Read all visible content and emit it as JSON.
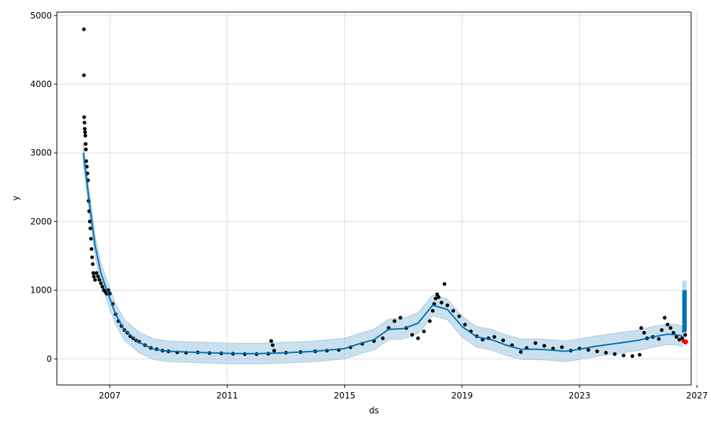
{
  "chart_data": {
    "type": "scatter",
    "title": "",
    "xlabel": "ds",
    "ylabel": "y",
    "xlim": [
      2005.2,
      2026.8
    ],
    "ylim": [
      -380,
      5050
    ],
    "x_ticks": [
      2007,
      2011,
      2015,
      2019,
      2023,
      2027
    ],
    "x_tick_labels": [
      "2007",
      "2011",
      "2015",
      "2019",
      "2023",
      "2027"
    ],
    "y_ticks": [
      0,
      1000,
      2000,
      3000,
      4000,
      5000
    ],
    "y_tick_labels": [
      "0",
      "1000",
      "2000",
      "3000",
      "4000",
      "5000"
    ],
    "grid": true,
    "colors": {
      "observed": "#000000",
      "forecast_line": "#0072B2",
      "uncertainty": "#a8cbe3",
      "highlight": "#ff0000"
    },
    "observed": [
      [
        2006.12,
        4800
      ],
      [
        2006.12,
        4130
      ],
      [
        2006.13,
        3520
      ],
      [
        2006.14,
        3440
      ],
      [
        2006.15,
        3350
      ],
      [
        2006.16,
        3300
      ],
      [
        2006.17,
        3250
      ],
      [
        2006.18,
        3130
      ],
      [
        2006.19,
        3050
      ],
      [
        2006.2,
        2880
      ],
      [
        2006.22,
        2800
      ],
      [
        2006.24,
        2700
      ],
      [
        2006.26,
        2600
      ],
      [
        2006.28,
        2300
      ],
      [
        2006.3,
        2150
      ],
      [
        2006.32,
        2000
      ],
      [
        2006.34,
        1900
      ],
      [
        2006.36,
        1750
      ],
      [
        2006.38,
        1600
      ],
      [
        2006.4,
        1480
      ],
      [
        2006.42,
        1380
      ],
      [
        2006.44,
        1250
      ],
      [
        2006.46,
        1200
      ],
      [
        2006.5,
        1150
      ],
      [
        2006.55,
        1250
      ],
      [
        2006.6,
        1200
      ],
      [
        2006.65,
        1150
      ],
      [
        2006.7,
        1100
      ],
      [
        2006.75,
        1050
      ],
      [
        2006.8,
        1000
      ],
      [
        2006.85,
        980
      ],
      [
        2006.9,
        950
      ],
      [
        2006.95,
        1000
      ],
      [
        2007.0,
        950
      ],
      [
        2007.1,
        800
      ],
      [
        2007.2,
        650
      ],
      [
        2007.3,
        550
      ],
      [
        2007.4,
        480
      ],
      [
        2007.5,
        420
      ],
      [
        2007.6,
        380
      ],
      [
        2007.7,
        330
      ],
      [
        2007.8,
        300
      ],
      [
        2007.9,
        270
      ],
      [
        2008.0,
        250
      ],
      [
        2008.2,
        200
      ],
      [
        2008.4,
        160
      ],
      [
        2008.6,
        140
      ],
      [
        2008.8,
        120
      ],
      [
        2009.0,
        110
      ],
      [
        2009.3,
        95
      ],
      [
        2009.6,
        90
      ],
      [
        2010.0,
        95
      ],
      [
        2010.4,
        85
      ],
      [
        2010.8,
        80
      ],
      [
        2011.2,
        75
      ],
      [
        2011.6,
        70
      ],
      [
        2012.0,
        70
      ],
      [
        2012.4,
        75
      ],
      [
        2012.5,
        260
      ],
      [
        2012.55,
        200
      ],
      [
        2012.6,
        120
      ],
      [
        2013.0,
        90
      ],
      [
        2013.5,
        100
      ],
      [
        2014.0,
        110
      ],
      [
        2014.4,
        120
      ],
      [
        2014.8,
        130
      ],
      [
        2015.2,
        170
      ],
      [
        2015.6,
        220
      ],
      [
        2016.0,
        260
      ],
      [
        2016.3,
        300
      ],
      [
        2016.5,
        450
      ],
      [
        2016.7,
        550
      ],
      [
        2016.9,
        600
      ],
      [
        2017.1,
        450
      ],
      [
        2017.3,
        350
      ],
      [
        2017.5,
        300
      ],
      [
        2017.7,
        400
      ],
      [
        2017.9,
        550
      ],
      [
        2018.0,
        700
      ],
      [
        2018.05,
        800
      ],
      [
        2018.1,
        880
      ],
      [
        2018.15,
        940
      ],
      [
        2018.2,
        900
      ],
      [
        2018.3,
        820
      ],
      [
        2018.4,
        1090
      ],
      [
        2018.5,
        780
      ],
      [
        2018.7,
        700
      ],
      [
        2018.9,
        620
      ],
      [
        2019.1,
        500
      ],
      [
        2019.3,
        400
      ],
      [
        2019.5,
        330
      ],
      [
        2019.7,
        280
      ],
      [
        2019.9,
        300
      ],
      [
        2020.1,
        320
      ],
      [
        2020.4,
        270
      ],
      [
        2020.7,
        200
      ],
      [
        2021.0,
        100
      ],
      [
        2021.2,
        160
      ],
      [
        2021.5,
        230
      ],
      [
        2021.8,
        190
      ],
      [
        2022.1,
        150
      ],
      [
        2022.4,
        170
      ],
      [
        2022.7,
        120
      ],
      [
        2023.0,
        150
      ],
      [
        2023.3,
        130
      ],
      [
        2023.6,
        110
      ],
      [
        2023.9,
        90
      ],
      [
        2024.2,
        70
      ],
      [
        2024.5,
        50
      ],
      [
        2024.8,
        40
      ],
      [
        2025.05,
        60
      ],
      [
        2025.1,
        450
      ],
      [
        2025.2,
        380
      ],
      [
        2025.3,
        300
      ],
      [
        2025.5,
        320
      ],
      [
        2025.7,
        290
      ],
      [
        2025.8,
        420
      ],
      [
        2025.9,
        600
      ],
      [
        2026.0,
        500
      ],
      [
        2026.1,
        450
      ],
      [
        2026.2,
        380
      ],
      [
        2026.3,
        320
      ],
      [
        2026.4,
        280
      ],
      [
        2026.5,
        300
      ],
      [
        2026.6,
        350
      ]
    ],
    "trend": [
      [
        2006.1,
        3000
      ],
      [
        2006.3,
        2300
      ],
      [
        2006.5,
        1650
      ],
      [
        2006.7,
        1250
      ],
      [
        2006.9,
        1000
      ],
      [
        2007.2,
        650
      ],
      [
        2007.5,
        420
      ],
      [
        2008.0,
        240
      ],
      [
        2008.5,
        140
      ],
      [
        2009.0,
        110
      ],
      [
        2010.0,
        95
      ],
      [
        2011.0,
        80
      ],
      [
        2012.0,
        75
      ],
      [
        2013.0,
        90
      ],
      [
        2014.0,
        110
      ],
      [
        2015.0,
        150
      ],
      [
        2015.5,
        220
      ],
      [
        2016.0,
        280
      ],
      [
        2016.5,
        430
      ],
      [
        2017.0,
        440
      ],
      [
        2017.5,
        520
      ],
      [
        2018.0,
        780
      ],
      [
        2018.5,
        720
      ],
      [
        2019.0,
        470
      ],
      [
        2019.5,
        320
      ],
      [
        2020.0,
        280
      ],
      [
        2020.5,
        200
      ],
      [
        2021.0,
        140
      ],
      [
        2021.5,
        140
      ],
      [
        2022.0,
        130
      ],
      [
        2022.5,
        110
      ],
      [
        2023.0,
        140
      ],
      [
        2023.5,
        180
      ],
      [
        2024.0,
        210
      ],
      [
        2024.5,
        240
      ],
      [
        2025.0,
        270
      ],
      [
        2025.5,
        320
      ],
      [
        2026.0,
        360
      ],
      [
        2026.3,
        350
      ],
      [
        2026.5,
        330
      ]
    ],
    "uncertainty_halfwidth": 150,
    "forecast_band": [
      [
        2026.5,
        380,
        1000
      ],
      [
        2026.6,
        390,
        1000
      ],
      [
        2026.65,
        400,
        1000
      ]
    ],
    "forecast_band_outer": [
      [
        2026.5,
        300,
        1140
      ],
      [
        2026.65,
        300,
        1140
      ]
    ],
    "highlight_points": [
      [
        2026.55,
        260
      ],
      [
        2026.6,
        240
      ],
      [
        2026.63,
        250
      ]
    ]
  }
}
